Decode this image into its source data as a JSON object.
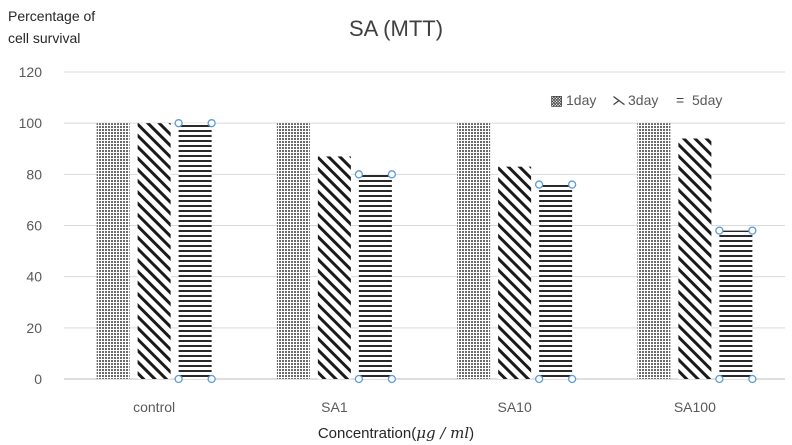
{
  "chart_data": {
    "type": "bar",
    "title": "SA (MTT)",
    "ylabel_lines": [
      "Percentage of",
      "cell survival"
    ],
    "xlabel_prefix": "Concentration(",
    "xlabel_unit": "μg / ml",
    "xlabel_suffix": ")",
    "categories": [
      "control",
      "SA1",
      "SA10",
      "SA100"
    ],
    "series": [
      {
        "name": "1day",
        "values": [
          100,
          100,
          100,
          100
        ],
        "pattern": "crosshatch"
      },
      {
        "name": "3day",
        "values": [
          100,
          87,
          83,
          94
        ],
        "pattern": "diagonal"
      },
      {
        "name": "5day",
        "values": [
          100,
          80,
          76,
          58
        ],
        "pattern": "horizontal"
      }
    ],
    "ylim": [
      0,
      120
    ],
    "yticks": [
      0,
      20,
      40,
      60,
      80,
      100,
      120
    ],
    "grid": true,
    "legend_position": "top-right",
    "legend_markers": [
      "▩",
      "⋋",
      "="
    ]
  }
}
